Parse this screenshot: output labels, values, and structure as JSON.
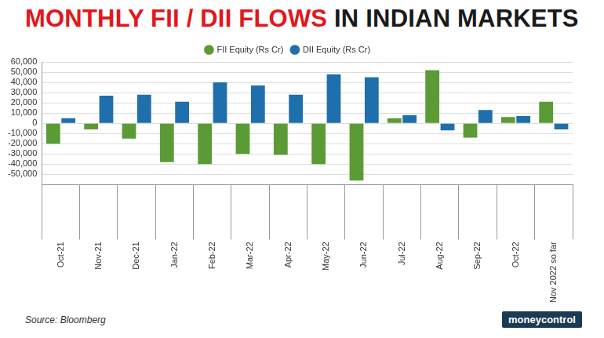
{
  "chart_data": {
    "type": "bar",
    "title": "MONTHLY FII / DII FLOWS IN INDIAN MARKETS",
    "annotations": [
      "Source: Bloomberg",
      "moneycontrol"
    ],
    "categories": [
      "Oct-21",
      "Nov-21",
      "Dec-21",
      "Jan-22",
      "Feb-22",
      "Mar-22",
      "Apr-22",
      "May-22",
      "Jun-22",
      "Jul-22",
      "Aug-22",
      "Sep-22",
      "Oct-22",
      "Nov 2022 so far"
    ],
    "series": [
      {
        "name": "FII Equity (Rs Cr)",
        "color": "#5b9b35",
        "values": [
          -20000,
          -6000,
          -15000,
          -38000,
          -40000,
          -30000,
          -31000,
          -40000,
          -56000,
          5000,
          52000,
          -14000,
          6000,
          21000
        ]
      },
      {
        "name": "DII Equity (Rs Cr)",
        "color": "#1f6fad",
        "values": [
          5000,
          27000,
          28000,
          21000,
          40000,
          37000,
          28000,
          48000,
          45000,
          8000,
          -7000,
          13000,
          7000,
          -6000
        ]
      }
    ],
    "ylim": [
      -60000,
      60000
    ],
    "yticks": [
      {
        "value": -50000,
        "label": "-50,000"
      },
      {
        "value": -40000,
        "label": "-40,000"
      },
      {
        "value": -30000,
        "label": "-30,000"
      },
      {
        "value": -20000,
        "label": "-20,000"
      },
      {
        "value": -10000,
        "label": "-10,000"
      },
      0,
      {
        "value": 10000,
        "label": "10,000"
      },
      {
        "value": 20000,
        "label": "20,000"
      },
      {
        "value": 30000,
        "label": "30,000"
      },
      {
        "value": 40000,
        "label": "40,000"
      },
      {
        "value": 50000,
        "label": "50,000"
      },
      {
        "value": 60000,
        "label": "60,000"
      }
    ],
    "grid": true,
    "legend": "top"
  }
}
